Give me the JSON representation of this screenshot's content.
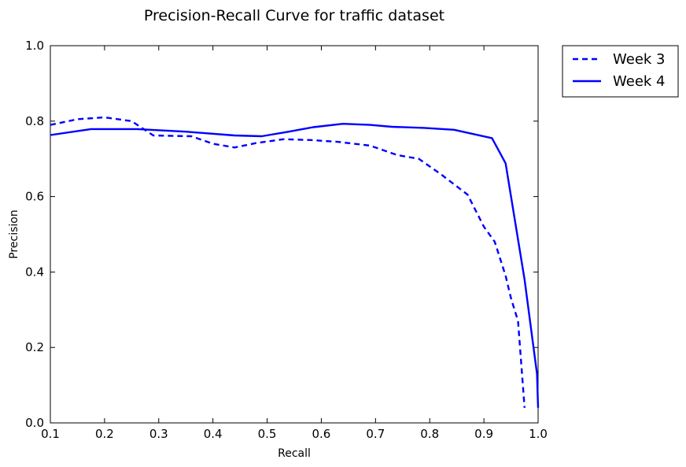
{
  "chart_data": {
    "type": "line",
    "title": "Precision-Recall Curve for traffic dataset",
    "xlabel": "Recall",
    "ylabel": "Precision",
    "xlim": [
      0.1,
      1.0
    ],
    "ylim": [
      0.0,
      1.0
    ],
    "xticks": [
      "0.1",
      "0.2",
      "0.3",
      "0.4",
      "0.5",
      "0.6",
      "0.7",
      "0.8",
      "0.9",
      "1.0"
    ],
    "yticks": [
      "0.0",
      "0.2",
      "0.4",
      "0.6",
      "0.8",
      "1.0"
    ],
    "grid": false,
    "legend_position": "outside-top-right",
    "series": [
      {
        "name": "Week 3",
        "color": "#0000ff",
        "style": "dashed",
        "x": [
          0.1,
          0.15,
          0.2,
          0.25,
          0.29,
          0.36,
          0.4,
          0.44,
          0.48,
          0.53,
          0.58,
          0.63,
          0.69,
          0.74,
          0.78,
          0.82,
          0.87,
          0.9,
          0.92,
          0.94,
          0.95,
          0.963,
          0.975
        ],
        "y": [
          0.79,
          0.805,
          0.81,
          0.8,
          0.762,
          0.76,
          0.74,
          0.73,
          0.742,
          0.752,
          0.75,
          0.745,
          0.735,
          0.71,
          0.7,
          0.66,
          0.605,
          0.52,
          0.48,
          0.39,
          0.33,
          0.27,
          0.04
        ]
      },
      {
        "name": "Week 4",
        "color": "#0000ff",
        "style": "solid",
        "x": [
          0.1,
          0.175,
          0.26,
          0.35,
          0.44,
          0.49,
          0.54,
          0.585,
          0.64,
          0.69,
          0.73,
          0.79,
          0.845,
          0.915,
          0.94,
          0.975,
          0.998,
          1.0
        ],
        "y": [
          0.763,
          0.779,
          0.779,
          0.772,
          0.762,
          0.76,
          0.772,
          0.784,
          0.793,
          0.79,
          0.785,
          0.782,
          0.777,
          0.755,
          0.688,
          0.38,
          0.13,
          0.04
        ]
      }
    ]
  }
}
